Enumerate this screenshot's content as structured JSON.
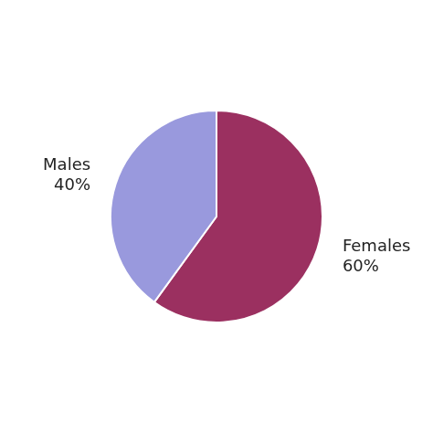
{
  "chart_data": {
    "type": "pie",
    "categories": [
      "Females",
      "Males"
    ],
    "values": [
      60,
      40
    ],
    "value_labels": [
      "60%",
      "40%"
    ],
    "colors": [
      "#9B3060",
      "#9999DD"
    ],
    "data_labels": true,
    "legend": false
  }
}
